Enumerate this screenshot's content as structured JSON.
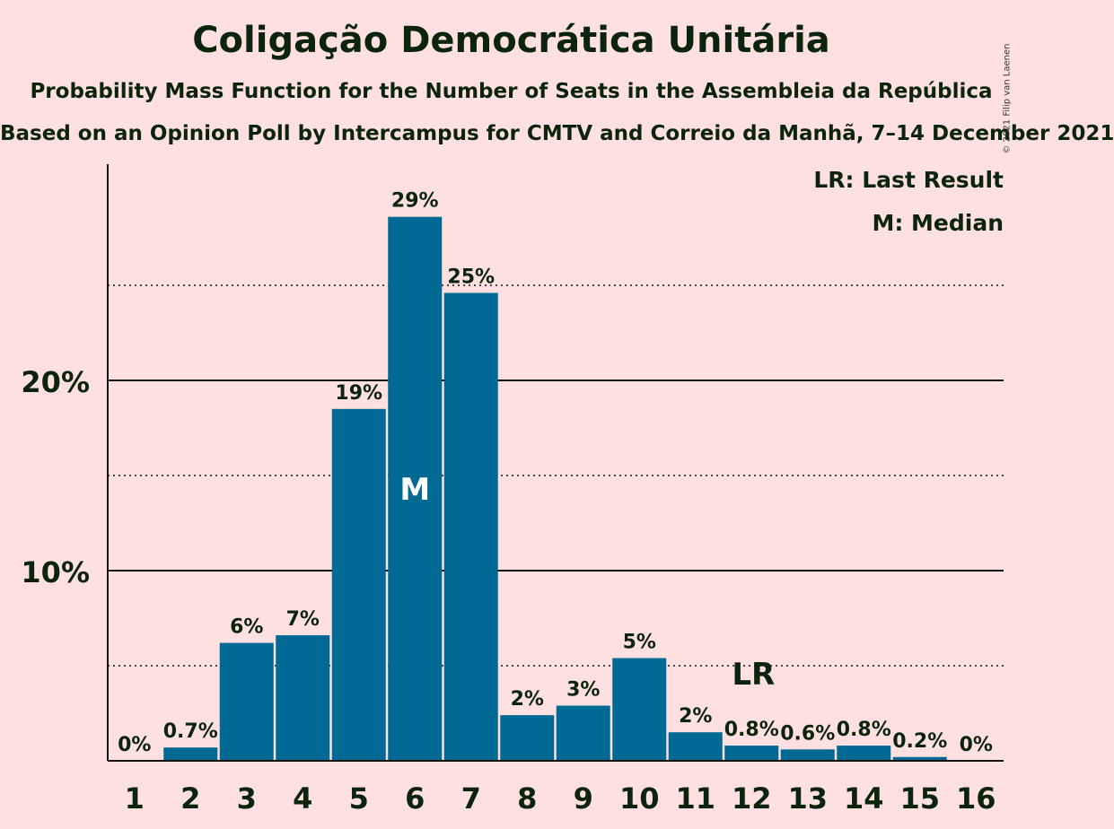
{
  "title": "Coligação Democrática Unitária",
  "subtitle": "Probability Mass Function for the Number of Seats in the Assembleia da República",
  "subtitle2": "Based on an Opinion Poll by Intercampus for CMTV and Correio da Manhã, 7–14 December 2021",
  "copyright": "© 2021 Filip van Laenen",
  "legend": {
    "last_result": "LR: Last Result",
    "median": "M: Median"
  },
  "colors": {
    "background": "#FFE0E0",
    "bar": "#006994",
    "text": "#0c240c"
  },
  "chart_data": {
    "type": "bar",
    "title": "Coligação Democrática Unitária",
    "xlabel": "",
    "ylabel": "",
    "categories": [
      "1",
      "2",
      "3",
      "4",
      "5",
      "6",
      "7",
      "8",
      "9",
      "10",
      "11",
      "12",
      "13",
      "14",
      "15",
      "16"
    ],
    "values": [
      0,
      0.7,
      6.2,
      6.6,
      18.5,
      28.6,
      24.6,
      2.4,
      2.9,
      5.4,
      1.5,
      0.8,
      0.6,
      0.8,
      0.2,
      0
    ],
    "labels": [
      "0%",
      "0.7%",
      "6%",
      "7%",
      "19%",
      "29%",
      "25%",
      "2%",
      "3%",
      "5%",
      "2%",
      "0.8%",
      "0.6%",
      "0.8%",
      "0.2%",
      "0%"
    ],
    "ylim": [
      0,
      31
    ],
    "yticks": [
      10,
      20
    ],
    "ytick_labels": [
      "10%",
      "20%"
    ],
    "minor_gridlines": [
      5,
      15,
      25
    ],
    "grid": true,
    "median_category": "6",
    "median_label": "M",
    "last_result_category": "12",
    "last_result_label": "LR",
    "legend_position": "top-right"
  }
}
